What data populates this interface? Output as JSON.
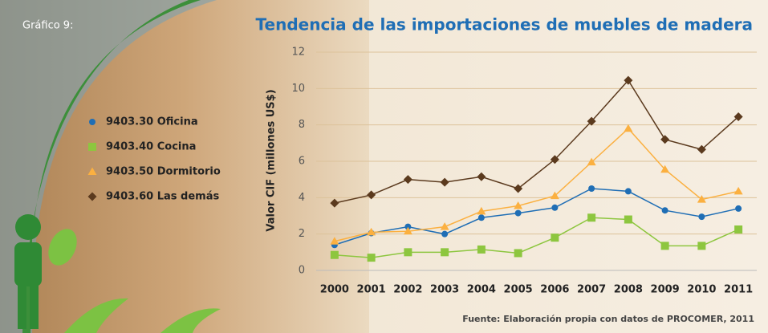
{
  "chart_data": {
    "type": "line",
    "label": "Gráfico 9:",
    "title": "Tendencia de las importaciones de muebles de madera",
    "y_label": "Valor CIF (millones US$)",
    "source": "Fuente: Elaboración propia con datos de PROCOMER, 2011",
    "categories": [
      "2000",
      "2001",
      "2002",
      "2003",
      "2004",
      "2005",
      "2006",
      "2007",
      "2008",
      "2009",
      "2010",
      "2011"
    ],
    "series": [
      {
        "name": "9403.30 Oficina",
        "color": "#1f6eb5",
        "marker": "circle",
        "values": [
          1.4,
          2.05,
          2.4,
          2.0,
          2.9,
          3.15,
          3.45,
          4.5,
          4.35,
          3.3,
          2.95,
          3.4
        ]
      },
      {
        "name": "9403.40 Cocina",
        "color": "#8dc63f",
        "marker": "square",
        "values": [
          0.85,
          0.7,
          1.0,
          1.0,
          1.15,
          0.95,
          1.8,
          2.9,
          2.8,
          1.35,
          1.35,
          2.25
        ]
      },
      {
        "name": "9403.50 Dormitorio",
        "color": "#fbb040",
        "marker": "triangle",
        "values": [
          1.6,
          2.1,
          2.15,
          2.4,
          3.25,
          3.55,
          4.1,
          5.95,
          7.8,
          5.55,
          3.9,
          4.35
        ]
      },
      {
        "name": "9403.60 Las demás",
        "color": "#5b3a1e",
        "marker": "diamond",
        "values": [
          3.7,
          4.15,
          5.0,
          4.85,
          5.15,
          4.5,
          6.1,
          8.2,
          10.45,
          7.2,
          6.65,
          8.45
        ]
      }
    ],
    "ylim": [
      0,
      12
    ],
    "yticks": [
      0,
      2,
      4,
      6,
      8,
      10,
      12
    ],
    "grid": true,
    "legend_position": "left"
  }
}
